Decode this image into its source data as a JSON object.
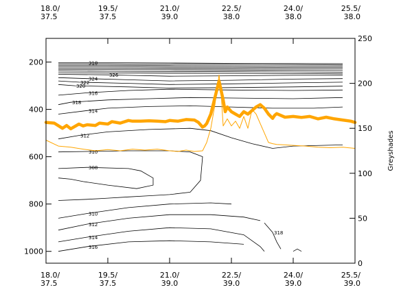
{
  "chart_data": {
    "type": "line",
    "title": "",
    "colors": {
      "contour": "#000000",
      "thick_series": "#ffa500",
      "thin_series": "#ffa500"
    },
    "top_axis_ticks": [
      {
        "l1": "18.0/",
        "l2": "37.5",
        "value": 18.0
      },
      {
        "l1": "19.5/",
        "l2": "37.5",
        "value": 19.5
      },
      {
        "l1": "21.0/",
        "l2": "39.0",
        "value": 21.0
      },
      {
        "l1": "22.5/",
        "l2": "38.0",
        "value": 22.5
      },
      {
        "l1": "24.0/",
        "l2": "38.0",
        "value": 24.0
      },
      {
        "l1": "25.5/",
        "l2": "38.0",
        "value": 25.5
      }
    ],
    "bottom_axis_ticks": [
      {
        "l1": "18.0/",
        "l2": "37.5",
        "value": 18.0
      },
      {
        "l1": "19.5/",
        "l2": "37.5",
        "value": 19.5
      },
      {
        "l1": "21.0/",
        "l2": "39.0",
        "value": 21.0
      },
      {
        "l1": "22.5/",
        "l2": "39.0",
        "value": 22.5
      },
      {
        "l1": "24.0/",
        "l2": "39.0",
        "value": 24.0
      },
      {
        "l1": "25.5/",
        "l2": "39.0",
        "value": 25.5
      }
    ],
    "xlim": [
      18.0,
      25.5
    ],
    "left_axis": {
      "ticks": [
        "200",
        "400",
        "600",
        "800",
        "1000"
      ],
      "values": [
        200,
        400,
        600,
        800,
        1000
      ],
      "ylim": [
        100,
        1050
      ]
    },
    "right_axis": {
      "label": "Greyshades",
      "ticks": [
        "0",
        "50",
        "100",
        "150",
        "200",
        "250"
      ],
      "values": [
        0,
        50,
        100,
        150,
        200,
        250
      ],
      "ylim": [
        0,
        250
      ]
    },
    "series": [
      {
        "name": "",
        "style": "thick",
        "x": [
          18.0,
          18.2,
          18.4,
          18.5,
          18.6,
          18.8,
          18.9,
          19.0,
          19.2,
          19.3,
          19.5,
          19.6,
          19.8,
          20.0,
          20.1,
          20.3,
          20.5,
          20.7,
          20.9,
          21.0,
          21.2,
          21.4,
          21.6,
          21.7,
          21.8,
          21.85,
          21.9,
          22.0,
          22.1,
          22.2,
          22.3,
          22.35,
          22.4,
          22.5,
          22.6,
          22.7,
          22.8,
          22.9,
          23.0,
          23.1,
          23.2,
          23.3,
          23.4,
          23.5,
          23.55,
          23.6,
          23.8,
          24.0,
          24.2,
          24.4,
          24.6,
          24.8,
          25.0,
          25.2,
          25.4,
          25.5
        ],
        "y": [
          455,
          458,
          480,
          468,
          482,
          462,
          470,
          465,
          468,
          458,
          462,
          452,
          458,
          447,
          450,
          450,
          448,
          450,
          452,
          447,
          450,
          443,
          445,
          455,
          475,
          470,
          460,
          420,
          350,
          280,
          360,
          410,
          390,
          410,
          420,
          430,
          410,
          420,
          405,
          390,
          380,
          395,
          420,
          438,
          425,
          418,
          433,
          430,
          434,
          430,
          440,
          433,
          440,
          445,
          450,
          455
        ]
      },
      {
        "name": "",
        "style": "thin",
        "x": [
          18.0,
          18.3,
          18.6,
          18.9,
          19.2,
          19.5,
          19.8,
          20.1,
          20.4,
          20.7,
          21.0,
          21.2,
          21.4,
          21.6,
          21.8,
          21.9,
          22.0,
          22.1,
          22.2,
          22.25,
          22.3,
          22.4,
          22.5,
          22.6,
          22.7,
          22.8,
          22.9,
          23.0,
          23.1,
          23.3,
          23.4,
          23.5,
          23.6,
          23.8,
          24.0,
          24.3,
          24.6,
          24.9,
          25.2,
          25.5
        ],
        "y": [
          530,
          555,
          560,
          568,
          575,
          570,
          575,
          568,
          572,
          568,
          575,
          578,
          572,
          578,
          575,
          540,
          480,
          380,
          255,
          330,
          470,
          440,
          470,
          450,
          480,
          430,
          480,
          400,
          420,
          500,
          540,
          545,
          548,
          550,
          552,
          555,
          560,
          562,
          560,
          565
        ]
      }
    ],
    "contours": [
      {
        "label": "318",
        "x": [
          18.3,
          19.0,
          20.0,
          21.0,
          22.0,
          23.0,
          24.0,
          25.2
        ],
        "y": [
          203,
          203,
          203,
          204,
          205,
          206,
          206,
          207
        ]
      },
      {
        "label": "",
        "x": [
          18.3,
          19.5,
          21.0,
          22.5,
          24.0,
          25.2
        ],
        "y": [
          208,
          208,
          209,
          210,
          211,
          212
        ]
      },
      {
        "label": "",
        "x": [
          18.3,
          19.5,
          21.0,
          22.5,
          24.0,
          25.2
        ],
        "y": [
          214,
          214,
          215,
          216,
          217,
          217
        ]
      },
      {
        "label": "",
        "x": [
          18.3,
          19.5,
          21.0,
          22.5,
          24.0,
          25.2
        ],
        "y": [
          220,
          220,
          221,
          222,
          223,
          223
        ]
      },
      {
        "label": "",
        "x": [
          18.3,
          19.5,
          21.0,
          22.5,
          24.0,
          25.2
        ],
        "y": [
          226,
          226,
          227,
          228,
          229,
          229
        ]
      },
      {
        "label": "",
        "x": [
          18.3,
          19.5,
          21.0,
          22.5,
          24.0,
          25.2
        ],
        "y": [
          232,
          232,
          233,
          234,
          235,
          236
        ]
      },
      {
        "label": "",
        "x": [
          18.3,
          19.5,
          21.0,
          22.5,
          24.0,
          25.2
        ],
        "y": [
          238,
          239,
          240,
          241,
          242,
          243
        ]
      },
      {
        "label": "",
        "x": [
          18.3,
          19.5,
          21.0,
          22.5,
          24.0,
          25.2
        ],
        "y": [
          245,
          246,
          247,
          248,
          249,
          250
        ]
      },
      {
        "label": "326",
        "x": [
          18.3,
          19.5,
          20.0,
          21.0,
          22.5,
          24.0,
          25.2
        ],
        "y": [
          252,
          254,
          256,
          260,
          258,
          256,
          256
        ]
      },
      {
        "label": "324",
        "x": [
          18.3,
          19.0,
          20.0,
          21.0,
          22.5,
          24.0,
          25.2
        ],
        "y": [
          266,
          270,
          275,
          280,
          277,
          272,
          270
        ]
      },
      {
        "label": "322",
        "x": [
          18.3,
          18.8,
          20.0,
          21.0,
          22.5,
          24.0,
          25.2
        ],
        "y": [
          280,
          285,
          290,
          295,
          292,
          288,
          285
        ]
      },
      {
        "label": "320",
        "x": [
          18.3,
          18.7,
          20.0,
          21.0,
          22.5,
          24.0,
          25.2
        ],
        "y": [
          295,
          300,
          305,
          310,
          308,
          305,
          302
        ]
      },
      {
        "label": "316",
        "x": [
          18.3,
          19.0,
          20.0,
          21.0,
          22.5,
          24.0,
          25.2
        ],
        "y": [
          340,
          330,
          320,
          315,
          318,
          320,
          318
        ]
      },
      {
        "label": "318",
        "x": [
          18.3,
          18.6,
          19.5,
          20.5,
          21.5,
          22.5,
          24.0,
          25.2
        ],
        "y": [
          380,
          370,
          360,
          355,
          350,
          352,
          355,
          350
        ]
      },
      {
        "label": "314",
        "x": [
          18.3,
          19.0,
          19.5,
          20.5,
          21.5,
          22.5,
          23.5,
          24.5,
          25.2
        ],
        "y": [
          420,
          405,
          395,
          388,
          385,
          390,
          395,
          395,
          390
        ]
      },
      {
        "label": "312",
        "x": [
          18.3,
          18.8,
          19.5,
          20.5,
          21.5,
          22.0,
          22.5,
          23.0,
          23.5,
          24.0,
          25.2
        ],
        "y": [
          525,
          510,
          495,
          485,
          480,
          490,
          520,
          545,
          565,
          555,
          550
        ]
      },
      {
        "label": "310",
        "x": [
          18.3,
          19.0,
          20.0,
          21.0,
          21.5,
          21.8,
          21.75,
          21.5,
          21.0,
          20.5,
          20.0,
          19.5,
          19.0,
          18.3
        ],
        "y": [
          580,
          578,
          575,
          575,
          580,
          600,
          700,
          750,
          760,
          765,
          770,
          775,
          780,
          785
        ]
      },
      {
        "label": "308",
        "x": [
          18.3,
          19.0,
          20.0,
          20.3,
          20.6,
          20.6,
          20.2,
          19.5,
          18.9,
          18.6,
          18.3
        ],
        "y": [
          650,
          645,
          650,
          660,
          690,
          720,
          735,
          720,
          705,
          695,
          690
        ]
      },
      {
        "label": "310",
        "x": [
          18.3,
          19.0,
          20.0,
          21.0,
          22.0,
          22.5
        ],
        "y": [
          860,
          840,
          815,
          800,
          795,
          800
        ]
      },
      {
        "label": "312",
        "x": [
          18.3,
          19.0,
          20.0,
          21.0,
          22.0,
          22.8,
          23.2
        ],
        "y": [
          910,
          885,
          860,
          845,
          845,
          855,
          870
        ]
      },
      {
        "label": "314",
        "x": [
          18.3,
          19.0,
          20.0,
          21.0,
          22.0,
          22.8,
          23.2,
          23.3
        ],
        "y": [
          960,
          940,
          915,
          900,
          905,
          930,
          980,
          1000
        ]
      },
      {
        "label": "316",
        "x": [
          18.3,
          19.0,
          20.0,
          21.0,
          22.0,
          22.8
        ],
        "y": [
          1000,
          980,
          960,
          955,
          960,
          970
        ]
      },
      {
        "label": "318",
        "x": [
          23.3,
          23.5,
          23.6,
          23.7
        ],
        "y": [
          880,
          920,
          960,
          990
        ]
      },
      {
        "label": "",
        "x": [
          24.0,
          24.1,
          24.2
        ],
        "y": [
          1000,
          990,
          1000
        ]
      }
    ]
  }
}
